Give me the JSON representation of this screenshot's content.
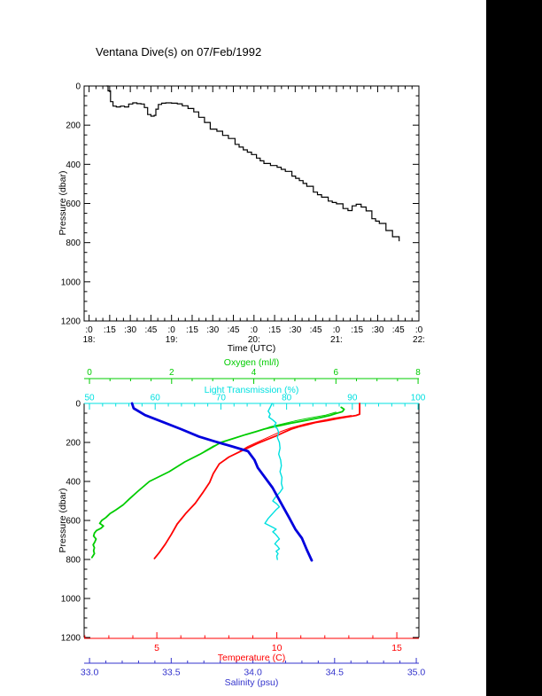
{
  "title": "Ventana Dive(s) on 07/Feb/1992",
  "colors": {
    "frame": "#000000",
    "profile": "#000000",
    "red": "#ff0000",
    "green": "#00cc00",
    "cyan": "#00e0e0",
    "blue_curve": "#0000dd",
    "blue_text": "#3333cc",
    "band": "#000000",
    "background": "#ffffff"
  },
  "top_chart": {
    "ylabel": "Pressure (dbar)",
    "xlabel": "Time (UTC)",
    "pressure_axis": {
      "tick_labels": [
        "0",
        "200",
        "400",
        "600",
        "800",
        "1000",
        "1200"
      ],
      "tick_values": [
        0,
        200,
        400,
        600,
        800,
        1000,
        1200
      ],
      "minor_step": 50
    },
    "time_axis": {
      "minute_tick_labels": [
        ":0",
        ":15",
        ":30",
        ":45",
        ":0",
        ":15",
        ":30",
        ":45",
        ":0",
        ":15",
        ":30",
        ":45",
        ":0",
        ":15",
        ":30",
        ":45",
        ":0"
      ],
      "minute_tick_values": [
        18,
        18.25,
        18.5,
        18.75,
        19,
        19.25,
        19.5,
        19.75,
        20,
        20.25,
        20.5,
        20.75,
        21,
        21.25,
        21.5,
        21.75,
        22
      ],
      "hour_labels": [
        "18:",
        "19:",
        "20:",
        "21:",
        "22:"
      ],
      "hour_values": [
        18,
        19,
        20,
        21,
        22
      ]
    }
  },
  "bottom_chart": {
    "ylabel": "Pressure (dbar)",
    "pressure_axis": {
      "tick_labels": [
        "0",
        "200",
        "400",
        "600",
        "800",
        "1000",
        "1200"
      ],
      "tick_values": [
        0,
        200,
        400,
        600,
        800,
        1000,
        1200
      ],
      "minor_step": 50
    },
    "axes": {
      "oxygen": {
        "label": "Oxygen (ml/l)",
        "tick_labels": [
          "0",
          "2",
          "4",
          "6",
          "8"
        ],
        "tick_values": [
          0,
          2,
          4,
          6,
          8
        ],
        "minor_step": 0.5,
        "range": [
          -0.13,
          8.02
        ]
      },
      "light": {
        "label": "Light Transmission (%)",
        "tick_labels": [
          "50",
          "60",
          "70",
          "80",
          "90",
          "100"
        ],
        "tick_values": [
          50,
          60,
          70,
          80,
          90,
          100
        ],
        "minor_step": 2,
        "range": [
          49.19,
          100.13
        ]
      },
      "temperature": {
        "label": "Temperature (C)",
        "tick_labels": [
          "5",
          "10",
          "15"
        ],
        "tick_values": [
          5,
          10,
          15
        ],
        "minor_step": 1,
        "range": [
          1.97,
          15.92
        ]
      },
      "salinity": {
        "label": "Salinity (psu)",
        "tick_labels": [
          "33.0",
          "33.5",
          "34.0",
          "34.5",
          "35.0"
        ],
        "tick_values": [
          33,
          33.5,
          34,
          34.5,
          35
        ],
        "minor_step": 0.1,
        "range": [
          32.967,
          35.016
        ]
      }
    }
  },
  "chart_data": [
    {
      "type": "line",
      "title": "Ventana Dive(s) on 07/Feb/1992",
      "xlabel": "Time (UTC)",
      "ylabel": "Pressure (dbar)",
      "xlim": [
        17.94,
        22.0
      ],
      "ylim": [
        1200,
        0
      ],
      "grid": false,
      "series": [
        {
          "name": "dive-depth-profile",
          "color": "#000000",
          "style": "staircase",
          "width": 1.2,
          "points": [
            [
              18.21,
              0
            ],
            [
              18.23,
              25
            ],
            [
              18.26,
              80
            ],
            [
              18.29,
              103
            ],
            [
              18.33,
              107
            ],
            [
              18.38,
              103
            ],
            [
              18.43,
              107
            ],
            [
              18.48,
              92
            ],
            [
              18.53,
              86
            ],
            [
              18.58,
              90
            ],
            [
              18.63,
              92
            ],
            [
              18.67,
              110
            ],
            [
              18.71,
              146
            ],
            [
              18.75,
              154
            ],
            [
              18.79,
              150
            ],
            [
              18.81,
              118
            ],
            [
              18.84,
              94
            ],
            [
              18.88,
              88
            ],
            [
              18.93,
              86
            ],
            [
              19.0,
              88
            ],
            [
              19.07,
              91
            ],
            [
              19.13,
              101
            ],
            [
              19.2,
              115
            ],
            [
              19.27,
              132
            ],
            [
              19.33,
              160
            ],
            [
              19.4,
              186
            ],
            [
              19.47,
              220
            ],
            [
              19.55,
              231
            ],
            [
              19.62,
              252
            ],
            [
              19.69,
              268
            ],
            [
              19.77,
              298
            ],
            [
              19.87,
              326
            ],
            [
              19.97,
              350
            ],
            [
              20.03,
              368
            ],
            [
              20.12,
              396
            ],
            [
              20.2,
              406
            ],
            [
              20.28,
              415
            ],
            [
              20.38,
              436
            ],
            [
              20.46,
              460
            ],
            [
              20.55,
              483
            ],
            [
              20.64,
              512
            ],
            [
              20.72,
              542
            ],
            [
              20.82,
              568
            ],
            [
              20.9,
              588
            ],
            [
              21.0,
              602
            ],
            [
              21.08,
              626
            ],
            [
              21.14,
              636
            ],
            [
              21.19,
              612
            ],
            [
              21.24,
              604
            ],
            [
              21.3,
              618
            ],
            [
              21.36,
              638
            ],
            [
              21.43,
              678
            ],
            [
              21.52,
              702
            ],
            [
              21.6,
              738
            ],
            [
              21.68,
              770
            ],
            [
              21.76,
              793
            ]
          ]
        }
      ]
    },
    {
      "type": "line",
      "ylabel": "Pressure (dbar)",
      "ylim": [
        1200,
        0
      ],
      "grid": false,
      "series": [
        {
          "name": "temperature-upcast",
          "axis": "temperature",
          "color": "#ff0000",
          "width": 1,
          "points": [
            [
              62,
              13.1
            ],
            [
              75,
              12.4
            ],
            [
              90,
              11.8
            ],
            [
              105,
              11.2
            ],
            [
              125,
              10.6
            ],
            [
              145,
              10.15
            ],
            [
              170,
              9.7
            ],
            [
              195,
              9.25
            ],
            [
              220,
              8.8
            ],
            [
              250,
              8.4
            ],
            [
              275,
              8.0
            ]
          ]
        },
        {
          "name": "oxygen-upcast",
          "axis": "oxygen",
          "color": "#00cc00",
          "width": 1,
          "points": [
            [
              45,
              6.0
            ],
            [
              60,
              5.75
            ],
            [
              75,
              5.35
            ],
            [
              90,
              5.0
            ],
            [
              105,
              4.7
            ],
            [
              120,
              4.4
            ],
            [
              135,
              4.2
            ],
            [
              150,
              3.95
            ],
            [
              170,
              3.65
            ],
            [
              195,
              3.3
            ],
            [
              220,
              3.0
            ],
            [
              245,
              2.8
            ]
          ]
        },
        {
          "name": "temperature-downcast",
          "axis": "temperature",
          "color": "#ff0000",
          "width": 1.8,
          "points": [
            [
              0,
              13.45
            ],
            [
              55,
              13.45
            ],
            [
              62,
              13.3
            ],
            [
              70,
              12.9
            ],
            [
              78,
              12.5
            ],
            [
              88,
              12.1
            ],
            [
              98,
              11.6
            ],
            [
              108,
              11.3
            ],
            [
              120,
              10.9
            ],
            [
              132,
              10.6
            ],
            [
              148,
              10.3
            ],
            [
              165,
              10.0
            ],
            [
              185,
              9.6
            ],
            [
              205,
              9.2
            ],
            [
              225,
              8.85
            ],
            [
              245,
              8.5
            ],
            [
              275,
              8.0
            ],
            [
              310,
              7.6
            ],
            [
              360,
              7.35
            ],
            [
              405,
              7.2
            ],
            [
              460,
              6.9
            ],
            [
              512,
              6.6
            ],
            [
              565,
              6.2
            ],
            [
              618,
              5.85
            ],
            [
              672,
              5.6
            ],
            [
              722,
              5.35
            ],
            [
              765,
              5.1
            ],
            [
              795,
              4.9
            ]
          ]
        },
        {
          "name": "oxygen-downcast",
          "axis": "oxygen",
          "color": "#00cc00",
          "width": 1.8,
          "points": [
            [
              20,
              6.13
            ],
            [
              30,
              6.2
            ],
            [
              42,
              6.16
            ],
            [
              52,
              6.0
            ],
            [
              62,
              5.85
            ],
            [
              72,
              5.65
            ],
            [
              82,
              5.4
            ],
            [
              92,
              5.15
            ],
            [
              102,
              4.9
            ],
            [
              112,
              4.68
            ],
            [
              122,
              4.45
            ],
            [
              132,
              4.25
            ],
            [
              145,
              4.05
            ],
            [
              160,
              3.8
            ],
            [
              180,
              3.5
            ],
            [
              200,
              3.2
            ],
            [
              230,
              2.95
            ],
            [
              262,
              2.68
            ],
            [
              300,
              2.32
            ],
            [
              350,
              1.94
            ],
            [
              400,
              1.46
            ],
            [
              450,
              1.18
            ],
            [
              490,
              0.97
            ],
            [
              520,
              0.82
            ],
            [
              545,
              0.65
            ],
            [
              565,
              0.5
            ],
            [
              585,
              0.4
            ],
            [
              600,
              0.3
            ],
            [
              615,
              0.25
            ],
            [
              628,
              0.34
            ],
            [
              640,
              0.28
            ],
            [
              652,
              0.17
            ],
            [
              665,
              0.12
            ],
            [
              680,
              0.1
            ],
            [
              695,
              0.16
            ],
            [
              710,
              0.13
            ],
            [
              725,
              0.09
            ],
            [
              740,
              0.12
            ],
            [
              755,
              0.1
            ],
            [
              770,
              0.12
            ],
            [
              790,
              0.06
            ]
          ]
        },
        {
          "name": "light-transmission",
          "axis": "light",
          "color": "#00e0e0",
          "width": 1.4,
          "points": [
            [
              0,
              77.8
            ],
            [
              20,
              77.5
            ],
            [
              40,
              77.2
            ],
            [
              55,
              77.5
            ],
            [
              70,
              77.3
            ],
            [
              85,
              77.9
            ],
            [
              100,
              78.4
            ],
            [
              115,
              78.1
            ],
            [
              130,
              78.6
            ],
            [
              150,
              78.8
            ],
            [
              175,
              78.6
            ],
            [
              200,
              78.9
            ],
            [
              230,
              79.0
            ],
            [
              260,
              78.8
            ],
            [
              290,
              79.1
            ],
            [
              320,
              79.2
            ],
            [
              350,
              79.0
            ],
            [
              380,
              79.3
            ],
            [
              410,
              79.2
            ],
            [
              435,
              79.4
            ],
            [
              455,
              79.0
            ],
            [
              470,
              78.6
            ],
            [
              485,
              78.2
            ],
            [
              500,
              77.9
            ],
            [
              515,
              78.5
            ],
            [
              530,
              78.9
            ],
            [
              545,
              78.4
            ],
            [
              560,
              78.0
            ],
            [
              575,
              77.6
            ],
            [
              590,
              77.2
            ],
            [
              605,
              76.9
            ],
            [
              615,
              76.7
            ],
            [
              625,
              77.3
            ],
            [
              635,
              77.9
            ],
            [
              645,
              78.4
            ],
            [
              658,
              77.9
            ],
            [
              670,
              78.3
            ],
            [
              682,
              78.6
            ],
            [
              695,
              78.9
            ],
            [
              708,
              78.5
            ],
            [
              720,
              78.2
            ],
            [
              732,
              78.6
            ],
            [
              745,
              78.9
            ],
            [
              758,
              78.4
            ],
            [
              770,
              78.7
            ],
            [
              782,
              78.5
            ],
            [
              800,
              78.6
            ]
          ]
        },
        {
          "name": "salinity",
          "axis": "salinity",
          "color": "#0000dd",
          "width": 2.8,
          "points": [
            [
              0,
              33.26
            ],
            [
              25,
              33.27
            ],
            [
              60,
              33.34
            ],
            [
              96,
              33.45
            ],
            [
              132,
              33.56
            ],
            [
              170,
              33.67
            ],
            [
              196,
              33.77
            ],
            [
              220,
              33.87
            ],
            [
              245,
              33.97
            ],
            [
              290,
              34.01
            ],
            [
              330,
              34.03
            ],
            [
              432,
              34.12
            ],
            [
              523,
              34.18
            ],
            [
              583,
              34.22
            ],
            [
              645,
              34.26
            ],
            [
              691,
              34.3
            ],
            [
              750,
              34.33
            ],
            [
              805,
              34.36
            ]
          ]
        }
      ]
    }
  ]
}
